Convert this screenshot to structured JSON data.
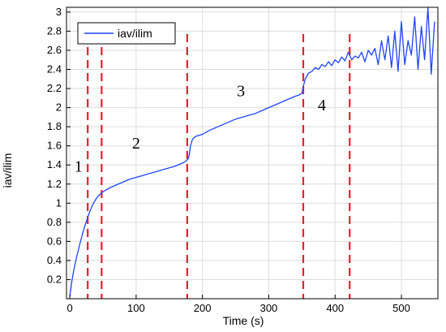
{
  "chart_data": {
    "type": "line",
    "title": "",
    "xlabel": "Time (s)",
    "ylabel": "iav/ilim",
    "xlim": [
      -5,
      555
    ],
    "ylim": [
      0,
      3.05
    ],
    "x_ticks": [
      "0",
      "100",
      "200",
      "300",
      "400",
      "500"
    ],
    "x_tick_values": [
      0,
      100,
      200,
      300,
      400,
      500
    ],
    "y_ticks": [
      "0.2",
      "0.4",
      "0.6",
      "0.8",
      "1",
      "1.2",
      "1.4",
      "1.6",
      "1.8",
      "2",
      "2.2",
      "2.4",
      "2.6",
      "2.8",
      "3"
    ],
    "y_tick_values": [
      0.2,
      0.4,
      0.6,
      0.8,
      1.0,
      1.2,
      1.4,
      1.6,
      1.8,
      2.0,
      2.2,
      2.4,
      2.6,
      2.8,
      3.0
    ],
    "grid": true,
    "legend_position": "top-left",
    "series": [
      {
        "name": "iav/ilim",
        "color": "#1f44ff",
        "x": [
          0,
          3,
          6,
          10,
          15,
          20,
          25,
          30,
          35,
          40,
          45,
          50,
          60,
          70,
          80,
          90,
          100,
          110,
          120,
          130,
          140,
          150,
          160,
          170,
          175,
          178,
          180,
          182,
          185,
          190,
          200,
          210,
          220,
          230,
          240,
          250,
          260,
          270,
          280,
          290,
          300,
          310,
          320,
          330,
          340,
          345,
          350,
          352,
          355,
          358,
          360,
          365,
          370,
          375,
          380,
          385,
          390,
          395,
          400,
          405,
          410,
          415,
          420,
          425,
          430,
          435,
          440,
          445,
          450,
          455,
          460,
          465,
          470,
          475,
          480,
          485,
          490,
          495,
          500,
          505,
          510,
          515,
          520,
          525,
          530,
          535,
          540,
          545,
          550
        ],
        "y": [
          0.02,
          0.18,
          0.3,
          0.43,
          0.57,
          0.7,
          0.81,
          0.91,
          0.99,
          1.05,
          1.09,
          1.12,
          1.16,
          1.19,
          1.22,
          1.25,
          1.27,
          1.29,
          1.31,
          1.33,
          1.35,
          1.37,
          1.39,
          1.42,
          1.44,
          1.46,
          1.5,
          1.6,
          1.67,
          1.7,
          1.72,
          1.76,
          1.79,
          1.82,
          1.85,
          1.88,
          1.9,
          1.92,
          1.94,
          1.97,
          2.0,
          2.03,
          2.06,
          2.09,
          2.12,
          2.13,
          2.15,
          2.22,
          2.3,
          2.34,
          2.36,
          2.38,
          2.42,
          2.4,
          2.45,
          2.43,
          2.48,
          2.44,
          2.5,
          2.47,
          2.53,
          2.49,
          2.58,
          2.5,
          2.54,
          2.52,
          2.58,
          2.48,
          2.6,
          2.55,
          2.62,
          2.45,
          2.7,
          2.5,
          2.75,
          2.42,
          2.8,
          2.38,
          2.9,
          2.45,
          2.7,
          2.55,
          2.95,
          2.4,
          2.85,
          2.5,
          3.05,
          2.35,
          2.9
        ]
      }
    ],
    "vertical_markers": {
      "color": "#e8202a",
      "x": [
        27,
        48,
        177,
        352,
        422
      ]
    },
    "annotations": [
      {
        "text": "1",
        "x": 13,
        "y": 1.33
      },
      {
        "text": "2",
        "x": 100,
        "y": 1.57
      },
      {
        "text": "3",
        "x": 258,
        "y": 2.12
      },
      {
        "text": "4",
        "x": 380,
        "y": 1.97
      }
    ]
  }
}
